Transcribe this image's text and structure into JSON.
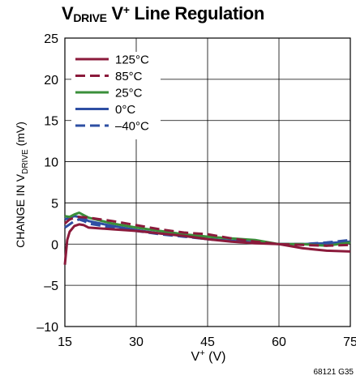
{
  "title": {
    "main": "V",
    "sub": "DRIVE",
    "mid": " V",
    "sup": "+",
    "rest": " Line Regulation"
  },
  "ylabel": {
    "pre": "CHANGE IN V",
    "sub": "DRIVE",
    "post": " (mV)"
  },
  "xlabel": {
    "pre": "V",
    "sup": "+",
    "post": " (V)"
  },
  "figure_code": "68121 G35",
  "chart_data": {
    "type": "line",
    "title": "VDRIVE V+ Line Regulation",
    "xlabel": "V+ (V)",
    "ylabel": "CHANGE IN VDRIVE (mV)",
    "xlim": [
      15,
      75
    ],
    "ylim": [
      -10,
      25
    ],
    "xticks": [
      15,
      30,
      45,
      60,
      75
    ],
    "yticks": [
      -10,
      -5,
      0,
      5,
      10,
      15,
      20,
      25
    ],
    "xtick_labels": [
      "15",
      "30",
      "45",
      "60",
      "75"
    ],
    "ytick_labels": [
      "–10",
      "–5",
      "0",
      "5",
      "10",
      "15",
      "20",
      "25"
    ],
    "grid": true,
    "legend_position": "top-left",
    "series": [
      {
        "name": "125°C",
        "color": "#8b1a3b",
        "dash": "solid",
        "x": [
          15,
          15.5,
          16,
          17,
          18,
          19,
          20,
          25,
          30,
          35,
          40,
          45,
          50,
          55,
          60,
          65,
          70,
          75
        ],
        "y": [
          -2.5,
          0.5,
          1.5,
          2.2,
          2.4,
          2.3,
          2.0,
          1.8,
          1.6,
          1.3,
          1.0,
          0.6,
          0.3,
          0.1,
          0.0,
          -0.5,
          -0.8,
          -0.9
        ]
      },
      {
        "name": "85°C",
        "color": "#8b1a3b",
        "dash": "dashed",
        "x": [
          15,
          16,
          17,
          18,
          20,
          25,
          30,
          35,
          40,
          45,
          50,
          55,
          60,
          65,
          70,
          75
        ],
        "y": [
          2.5,
          3.0,
          3.2,
          3.3,
          3.2,
          2.8,
          2.3,
          1.8,
          1.4,
          1.2,
          0.7,
          0.3,
          0.0,
          -0.1,
          -0.2,
          -0.1
        ]
      },
      {
        "name": "25°C",
        "color": "#3a8f3a",
        "dash": "solid",
        "x": [
          15,
          16,
          17,
          18,
          19,
          20,
          25,
          30,
          35,
          40,
          45,
          50,
          55,
          60,
          65,
          70,
          75
        ],
        "y": [
          3.4,
          3.3,
          3.6,
          3.8,
          3.5,
          3.2,
          2.5,
          2.0,
          1.6,
          1.2,
          0.9,
          0.7,
          0.5,
          0.0,
          0.0,
          -0.2,
          0.2
        ]
      },
      {
        "name": "0°C",
        "color": "#2e4fa3",
        "dash": "solid",
        "x": [
          15,
          16,
          17,
          18,
          19,
          20,
          25,
          30,
          35,
          40,
          45,
          50,
          55,
          60,
          65,
          70,
          75
        ],
        "y": [
          3.0,
          3.2,
          3.4,
          3.3,
          3.1,
          2.8,
          2.2,
          1.7,
          1.3,
          1.0,
          0.6,
          0.4,
          0.2,
          0.0,
          0.0,
          0.1,
          0.3
        ]
      },
      {
        "name": "–40°C",
        "color": "#2e4fa3",
        "dash": "dashed",
        "x": [
          15,
          16,
          17,
          18,
          19,
          20,
          25,
          30,
          35,
          40,
          45,
          50,
          55,
          60,
          65,
          70,
          75
        ],
        "y": [
          2.0,
          2.4,
          2.8,
          3.0,
          2.8,
          2.5,
          2.0,
          1.6,
          1.2,
          0.9,
          0.6,
          0.4,
          0.2,
          0.0,
          0.0,
          0.2,
          0.5
        ]
      }
    ]
  }
}
